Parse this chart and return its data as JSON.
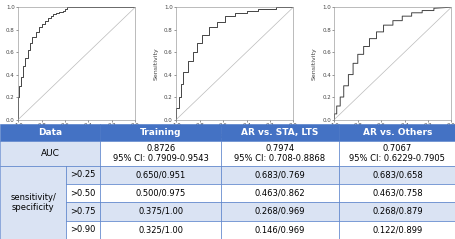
{
  "table_header_bg": "#4472C4",
  "table_header_fg": "#FFFFFF",
  "table_row_bg_alt": "#DAE3F3",
  "table_row_bg_main": "#FFFFFF",
  "table_border": "#4472C4",
  "col_headers": [
    "Data",
    "",
    "Training",
    "AR vs. STA, LTS",
    "AR vs. Others"
  ],
  "auc_row": [
    "AUC",
    "",
    "0.8726\n95% CI: 0.7909-0.9543",
    "0.7974\n95% CI: 0.708-0.8868",
    "0.7067\n95% CI: 0.6229-0.7905"
  ],
  "sens_label": "sensitivity/\nspecificity",
  "sens_rows": [
    [
      ">0.25",
      "0.650/0.951",
      "0.683/0.769",
      "0.683/0.658"
    ],
    [
      ">0.50",
      "0.500/0.975",
      "0.463/0.862",
      "0.463/0.758"
    ],
    [
      ">0.75",
      "0.375/1.00",
      "0.268/0.969",
      "0.268/0.879"
    ],
    [
      ">0.90",
      "0.325/1.00",
      "0.146/0.969",
      "0.122/0.899"
    ]
  ],
  "roc1_fpr": [
    0.0,
    0.0,
    0.01,
    0.01,
    0.02,
    0.02,
    0.04,
    0.04,
    0.06,
    0.06,
    0.08,
    0.08,
    0.1,
    0.1,
    0.12,
    0.12,
    0.15,
    0.15,
    0.18,
    0.18,
    0.2,
    0.2,
    0.23,
    0.23,
    0.25,
    0.25,
    0.28,
    0.28,
    0.3,
    0.3,
    0.32,
    0.32,
    0.35,
    0.35,
    0.38,
    0.38,
    0.4,
    0.4,
    0.42,
    0.42,
    0.95,
    0.95,
    1.0
  ],
  "roc1_tpr": [
    0.0,
    0.2,
    0.2,
    0.3,
    0.3,
    0.38,
    0.38,
    0.48,
    0.48,
    0.55,
    0.55,
    0.62,
    0.62,
    0.68,
    0.68,
    0.73,
    0.73,
    0.78,
    0.78,
    0.82,
    0.82,
    0.85,
    0.85,
    0.88,
    0.88,
    0.9,
    0.9,
    0.92,
    0.92,
    0.94,
    0.94,
    0.95,
    0.95,
    0.96,
    0.96,
    0.97,
    0.97,
    0.98,
    0.98,
    1.0,
    1.0,
    1.0,
    1.0
  ],
  "roc2_fpr": [
    0.0,
    0.0,
    0.02,
    0.02,
    0.04,
    0.04,
    0.06,
    0.06,
    0.1,
    0.1,
    0.14,
    0.14,
    0.18,
    0.18,
    0.22,
    0.22,
    0.28,
    0.28,
    0.35,
    0.35,
    0.42,
    0.42,
    0.5,
    0.5,
    0.6,
    0.6,
    0.7,
    0.7,
    0.85,
    0.85,
    1.0
  ],
  "roc2_tpr": [
    0.0,
    0.1,
    0.1,
    0.2,
    0.2,
    0.32,
    0.32,
    0.42,
    0.42,
    0.52,
    0.52,
    0.6,
    0.6,
    0.68,
    0.68,
    0.75,
    0.75,
    0.82,
    0.82,
    0.87,
    0.87,
    0.92,
    0.92,
    0.95,
    0.95,
    0.97,
    0.97,
    0.98,
    0.98,
    1.0,
    1.0
  ],
  "roc3_fpr": [
    0.0,
    0.0,
    0.02,
    0.02,
    0.05,
    0.05,
    0.08,
    0.08,
    0.12,
    0.12,
    0.16,
    0.16,
    0.2,
    0.2,
    0.25,
    0.25,
    0.3,
    0.3,
    0.36,
    0.36,
    0.42,
    0.42,
    0.5,
    0.5,
    0.58,
    0.58,
    0.66,
    0.66,
    0.75,
    0.75,
    0.85,
    0.85,
    1.0
  ],
  "roc3_tpr": [
    0.0,
    0.05,
    0.05,
    0.12,
    0.12,
    0.2,
    0.2,
    0.3,
    0.3,
    0.4,
    0.4,
    0.5,
    0.5,
    0.58,
    0.58,
    0.65,
    0.65,
    0.72,
    0.72,
    0.78,
    0.78,
    0.84,
    0.84,
    0.88,
    0.88,
    0.92,
    0.92,
    0.95,
    0.95,
    0.97,
    0.97,
    0.99,
    1.0
  ],
  "curve_color": "#444444",
  "diag_color": "#BBBBBB",
  "axis_label_color": "#444444",
  "axis_tick_color": "#444444",
  "font_size_axis": 4.5,
  "font_size_table": 6.5
}
